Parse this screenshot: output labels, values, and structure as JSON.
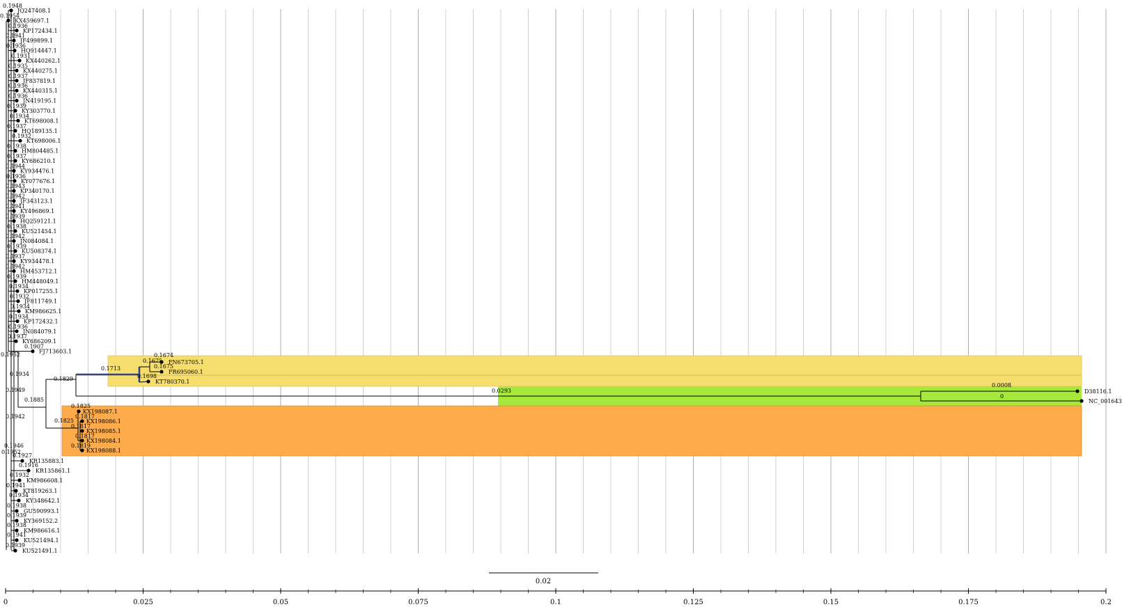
{
  "tree": {
    "leaves": [
      {
        "label": "JQ247408.1",
        "support": "0.1948"
      },
      {
        "label": "KX459697.1",
        "support": "0.1954"
      },
      {
        "label": "KP172434.1",
        "support": "0.1936"
      },
      {
        "label": "JF499899.1",
        "support": "0.1941"
      },
      {
        "label": "HQ914447.1",
        "support": "0.1936"
      },
      {
        "label": "KX440262.1",
        "support": "0.1931"
      },
      {
        "label": "KX440275.1",
        "support": "0.1935"
      },
      {
        "label": "JF837819.1",
        "support": "0.1937"
      },
      {
        "label": "KX440315.1",
        "support": "0.1936"
      },
      {
        "label": "JN419195.1",
        "support": "0.1936"
      },
      {
        "label": "KY303770.1",
        "support": "0.1939"
      },
      {
        "label": "KT698008.1",
        "support": "0.1934"
      },
      {
        "label": "HQ189135.1",
        "support": "0.1937"
      },
      {
        "label": "KT698006.1",
        "support": "0.1932"
      },
      {
        "label": "HM804485.1",
        "support": "0.1938"
      },
      {
        "label": "KY686210.1",
        "support": "0.1937"
      },
      {
        "label": "KY934476.1",
        "support": "0.1944"
      },
      {
        "label": "KY077676.1",
        "support": "0.1936"
      },
      {
        "label": "KP340170.1",
        "support": "0.1943"
      },
      {
        "label": "JF343123.1",
        "support": "0.1942"
      },
      {
        "label": "KY496869.1",
        "support": "0.1941"
      },
      {
        "label": "HQ259121.1",
        "support": "0.1939"
      },
      {
        "label": "KU521454.1",
        "support": "0.1938"
      },
      {
        "label": "JN084084.1",
        "support": "0.1942"
      },
      {
        "label": "KU508374.1",
        "support": "0.1939"
      },
      {
        "label": "KY934478.1",
        "support": "0.1937"
      },
      {
        "label": "HM453712.1",
        "support": "0.1942"
      },
      {
        "label": "HM448049.1",
        "support": "0.1939"
      },
      {
        "label": "KP017255.1",
        "support": "0.1934"
      },
      {
        "label": "JF811749.1",
        "support": "0.1932"
      },
      {
        "label": "KM986625.1",
        "support": "0.1934"
      },
      {
        "label": "KP172432.1",
        "support": "0.1934"
      },
      {
        "label": "JN084079.1",
        "support": "0.1936"
      },
      {
        "label": "KY686209.1",
        "support": "0.1937"
      },
      {
        "label": "FJ713603.1",
        "support": "0.1907"
      }
    ],
    "yellow_leaves": [
      {
        "label": "FN673705.1",
        "support": "0.1674"
      },
      {
        "label": "FR695060.1",
        "support": "0.1675"
      },
      {
        "label": "KT780370.1",
        "support": "0.1698"
      }
    ],
    "yellow_support": [
      "0.1713",
      "0.1675"
    ],
    "green_leaves": [
      {
        "label": "D38116.1",
        "support": "0.0008"
      },
      {
        "label": "NC_001643.1",
        "support": "0"
      }
    ],
    "green_support": "0.0293",
    "orange_leaves": [
      {
        "label": "KX198087.1",
        "support": "0.1825"
      },
      {
        "label": "KX198086.1",
        "support": "0.1817"
      },
      {
        "label": "KX198085.1",
        "support": "0.1817"
      },
      {
        "label": "KX198084.1",
        "support": "0.1817"
      },
      {
        "label": "KX198088.1",
        "support": "0.1819"
      }
    ],
    "orange_support": "0.1825",
    "bottom_leaves": [
      {
        "label": "KR135883.1",
        "support": "0.1927"
      },
      {
        "label": "KR135861.1",
        "support": "0.1916"
      },
      {
        "label": "KM986608.1",
        "support": "0.1932"
      },
      {
        "label": "KT819263.1",
        "support": "0.1941"
      },
      {
        "label": "KY348642.1",
        "support": "0.1934"
      },
      {
        "label": "GU590993.1",
        "support": "0.1938"
      },
      {
        "label": "KY369152.2",
        "support": "0.1939"
      },
      {
        "label": "KM986616.1",
        "support": "0.1938"
      },
      {
        "label": "KU521494.1",
        "support": "0.1941"
      },
      {
        "label": "KU521491.1",
        "support": "0.1939"
      }
    ],
    "internal_support": [
      "0.1952",
      "0.1934",
      "0.1829",
      "0.1949",
      "0.1885",
      "0.1942",
      "0.1946",
      "0.1952"
    ],
    "scale_bar_label": "0.02",
    "scale_bar_length": 0.02,
    "axis_ticks": [
      "0",
      "0.025",
      "0.05",
      "0.075",
      "0.1",
      "0.125",
      "0.15",
      "0.175",
      "0.2"
    ],
    "axis_max": 0.2,
    "colors": {
      "yellow": "#f5de6e",
      "green": "#a6e83c",
      "orange": "#fdab4b",
      "blue_branch": "#7b86c4",
      "grid": "#999999"
    }
  }
}
